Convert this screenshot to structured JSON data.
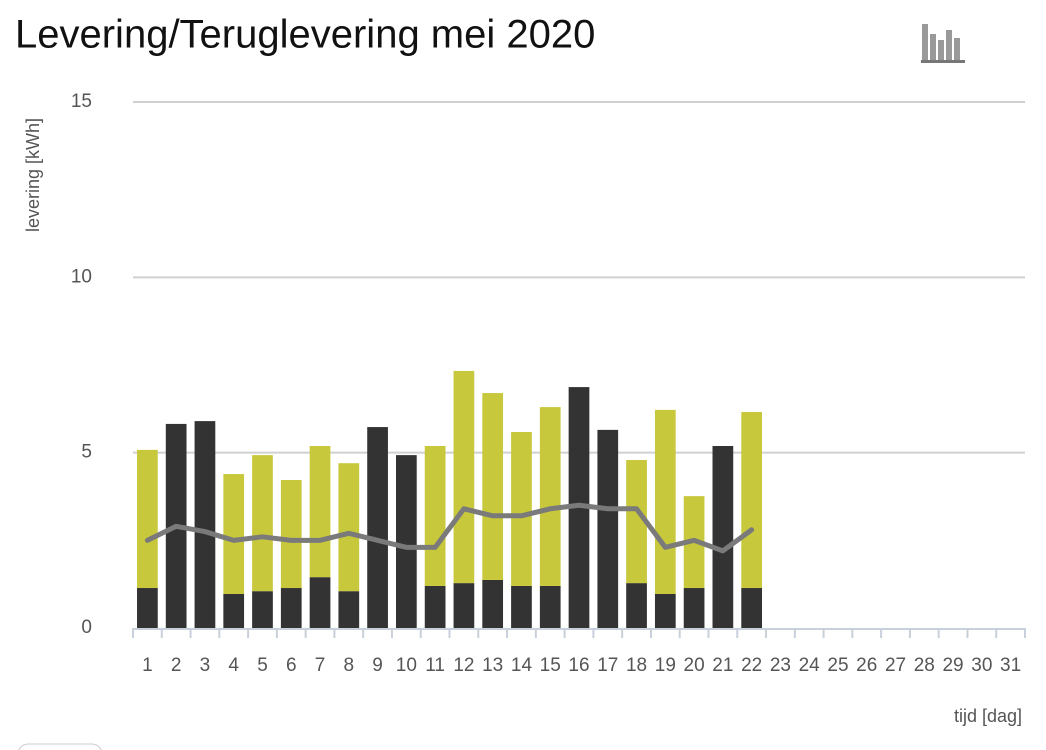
{
  "chart_data": {
    "type": "bar",
    "title": "Levering/Teruglevering mei 2020",
    "y_label": "levering [kWh]",
    "x_label": "tijd [dag]",
    "categories": [
      "1",
      "2",
      "3",
      "4",
      "5",
      "6",
      "7",
      "8",
      "9",
      "10",
      "11",
      "12",
      "13",
      "14",
      "15",
      "16",
      "17",
      "18",
      "19",
      "20",
      "21",
      "22",
      "23",
      "24",
      "25",
      "26",
      "27",
      "28",
      "29",
      "30",
      "31"
    ],
    "stacked": true,
    "series": [
      {
        "color": "#333333",
        "values": [
          1.14,
          5.82,
          5.9,
          0.97,
          1.05,
          1.14,
          1.45,
          1.05,
          5.73,
          4.93,
          1.2,
          1.28,
          1.37,
          1.2,
          1.2,
          6.87,
          5.65,
          1.28,
          0.97,
          1.14,
          5.19,
          1.14,
          null,
          null,
          null,
          null,
          null,
          null,
          null,
          null,
          null
        ]
      },
      {
        "color": "#c8c83c",
        "values": [
          3.94,
          null,
          null,
          3.42,
          3.88,
          3.08,
          3.74,
          3.65,
          null,
          null,
          3.99,
          6.05,
          5.33,
          4.39,
          5.1,
          null,
          null,
          3.51,
          5.25,
          2.62,
          null,
          5.02,
          null,
          null,
          null,
          null,
          null,
          null,
          null,
          null,
          null
        ]
      },
      {
        "type": "line",
        "color": "#7a7a7a",
        "values": [
          2.5,
          2.9,
          2.75,
          2.5,
          2.6,
          2.5,
          2.5,
          2.7,
          2.5,
          2.3,
          2.3,
          3.4,
          3.2,
          3.2,
          3.4,
          3.5,
          3.4,
          3.4,
          2.3,
          2.5,
          2.2,
          2.8,
          null,
          null,
          null,
          null,
          null,
          null,
          null,
          null,
          null
        ]
      }
    ],
    "ylim": [
      0,
      15
    ],
    "yticks": [
      0,
      5,
      10,
      15
    ],
    "grid": true
  }
}
